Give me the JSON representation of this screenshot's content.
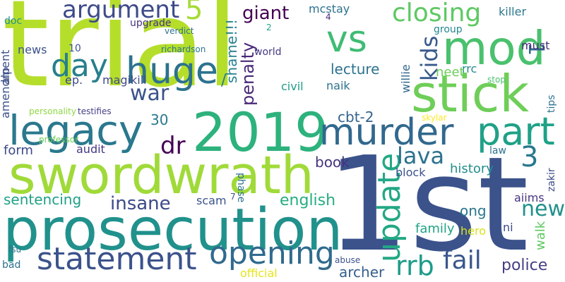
{
  "words": [
    {
      "text": "trial",
      "color": "#b5de2b"
    },
    {
      "text": "1st",
      "color": "#3b528b"
    },
    {
      "text": "prosecution",
      "color": "#21918c"
    },
    {
      "text": "swordwrath",
      "color": "#a0da39"
    },
    {
      "text": "2019",
      "color": "#2db27d"
    },
    {
      "text": "legacy",
      "color": "#2a788e"
    },
    {
      "text": "stick",
      "color": "#6ece58"
    },
    {
      "text": "mod",
      "color": "#4ac16d"
    },
    {
      "text": "murder",
      "color": "#31688e"
    },
    {
      "text": "part",
      "color": "#1fa187"
    },
    {
      "text": "huge",
      "color": "#2c728e"
    },
    {
      "text": "statement",
      "color": "#3b528b"
    },
    {
      "text": "opening",
      "color": "#306a8e"
    },
    {
      "text": "update",
      "color": "#22a884"
    },
    {
      "text": "fail",
      "color": "#39568c"
    },
    {
      "text": "rrb",
      "color": "#1e9b8a"
    },
    {
      "text": "vs",
      "color": "#3fbc73"
    },
    {
      "text": "day",
      "color": "#277f8e"
    },
    {
      "text": "argument",
      "color": "#3e4a89"
    },
    {
      "text": "closing",
      "color": "#5ec962"
    },
    {
      "text": "kids",
      "color": "#38598c"
    },
    {
      "text": "3",
      "color": "#2a788e"
    },
    {
      "text": "war",
      "color": "#3b528b"
    },
    {
      "text": "dr",
      "color": "#440154"
    },
    {
      "text": "lava",
      "color": "#2c728e"
    },
    {
      "text": "new",
      "color": "#21918c"
    },
    {
      "text": "insane",
      "color": "#3e4989"
    },
    {
      "text": "giant",
      "color": "#440154"
    },
    {
      "text": "5",
      "color": "#a5db36"
    },
    {
      "text": "1",
      "color": "#31688e"
    },
    {
      "text": "sentencing",
      "color": "#1fa187"
    },
    {
      "text": "english",
      "color": "#26ad81"
    },
    {
      "text": "police",
      "color": "#433e85"
    },
    {
      "text": "archer",
      "color": "#355f8d"
    },
    {
      "text": "penalty",
      "color": "#482878"
    },
    {
      "text": "shame!!!",
      "color": "#26828e"
    },
    {
      "text": "/",
      "color": "#287c8e"
    },
    {
      "text": "alp",
      "color": "#3e4989"
    },
    {
      "text": "amendment",
      "color": "#3b528b"
    },
    {
      "text": "willie",
      "color": "#31688e"
    },
    {
      "text": "zakir",
      "color": "#3e4c8a"
    },
    {
      "text": "tips",
      "color": "#2c728e"
    },
    {
      "text": "walk",
      "color": "#5ec962"
    },
    {
      "text": "doc",
      "color": "#21918c"
    },
    {
      "text": "phase",
      "color": "#2c728e"
    },
    {
      "text": "lecture",
      "color": "#2c728e"
    },
    {
      "text": "rrc",
      "color": "#23898e"
    },
    {
      "text": "cbt-2",
      "color": "#33638d"
    },
    {
      "text": "30",
      "color": "#2a788e"
    },
    {
      "text": "form",
      "color": "#3e4989"
    },
    {
      "text": "audit",
      "color": "#443983"
    },
    {
      "text": "book",
      "color": "#46337e"
    },
    {
      "text": "history",
      "color": "#228d8d"
    },
    {
      "text": "block",
      "color": "#3b528b"
    },
    {
      "text": "ong",
      "color": "#2a768e"
    },
    {
      "text": "family",
      "color": "#20a386"
    },
    {
      "text": "hero",
      "color": "#d8e219"
    },
    {
      "text": "ni",
      "color": "#3e4989"
    },
    {
      "text": "aiims",
      "color": "#453581"
    },
    {
      "text": "law",
      "color": "#2c728e"
    },
    {
      "text": "must",
      "color": "#472d7b"
    },
    {
      "text": "neet",
      "color": "#6ccd5a"
    },
    {
      "text": "naik",
      "color": "#2c728e"
    },
    {
      "text": "civil",
      "color": "#1f9e89"
    },
    {
      "text": "world",
      "color": "#443983"
    },
    {
      "text": "magikill",
      "color": "#3e4989"
    },
    {
      "text": "ep.",
      "color": "#3e4989"
    },
    {
      "text": "10",
      "color": "#3b528b"
    },
    {
      "text": "upgrade",
      "color": "#46337e"
    },
    {
      "text": "richardson",
      "color": "#2a788e"
    },
    {
      "text": "verdict",
      "color": "#2c728e"
    },
    {
      "text": "mcstay",
      "color": "#2c728e"
    },
    {
      "text": "4",
      "color": "#482878"
    },
    {
      "text": "2",
      "color": "#1fa187"
    },
    {
      "text": "group",
      "color": "#24878e"
    },
    {
      "text": "killer",
      "color": "#2a788e"
    },
    {
      "text": "news",
      "color": "#3b528b"
    },
    {
      "text": "personality",
      "color": "#8fd744"
    },
    {
      "text": "testifies",
      "color": "#433e85"
    },
    {
      "text": "professor",
      "color": "#6ece58"
    },
    {
      "text": "skylar",
      "color": "#fde725"
    },
    {
      "text": "stop",
      "color": "#4ac16d"
    },
    {
      "text": "scam",
      "color": "#3b528b"
    },
    {
      "text": "7",
      "color": "#3b528b"
    },
    {
      "text": "fsu",
      "color": "#2c728e"
    },
    {
      "text": "bad",
      "color": "#2c728e"
    },
    {
      "text": "abuse",
      "color": "#3b528b"
    },
    {
      "text": "official",
      "color": "#e5e419"
    }
  ]
}
